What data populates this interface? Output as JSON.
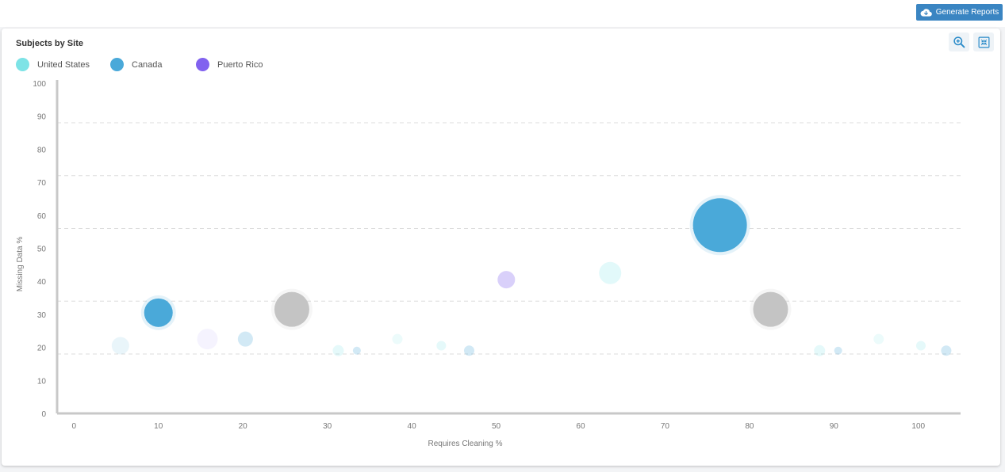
{
  "header": {
    "generate_label": "Generate Reports"
  },
  "colors": {
    "accent": "#3a85c2",
    "united_states": "#7de3e6",
    "canada": "#4aa9d9",
    "puerto_rico": "#8162ef",
    "gray": "#c4c4c4"
  },
  "chart_data": {
    "type": "scatter",
    "title": "Subjects by Site",
    "xlabel": "Requires Cleaning %",
    "ylabel": "Missing Data %",
    "xlim": [
      -2,
      105
    ],
    "ylim": [
      0,
      100
    ],
    "x_ticks": [
      0,
      10,
      20,
      30,
      40,
      50,
      60,
      70,
      80,
      90,
      100
    ],
    "y_ticks": [
      0,
      10,
      20,
      30,
      40,
      50,
      60,
      70,
      80,
      90,
      100
    ],
    "grid": "horizontal-dashed",
    "legend": "top-left",
    "series": [
      {
        "name": "United States",
        "color": "#7de3e6",
        "points": [
          {
            "x": 63.5,
            "y": 42.5,
            "size": 14,
            "opacity": 0.22
          },
          {
            "x": 31.3,
            "y": 19,
            "size": 7,
            "opacity": 0.2
          },
          {
            "x": 38.3,
            "y": 22.5,
            "size": 6.5,
            "opacity": 0.15
          },
          {
            "x": 43.5,
            "y": 20.5,
            "size": 6,
            "opacity": 0.2
          },
          {
            "x": 88.3,
            "y": 19,
            "size": 7,
            "opacity": 0.2
          },
          {
            "x": 95.3,
            "y": 22.5,
            "size": 6.5,
            "opacity": 0.15
          },
          {
            "x": 100.3,
            "y": 20.5,
            "size": 6,
            "opacity": 0.2
          }
        ]
      },
      {
        "name": "Canada",
        "color": "#4aa9d9",
        "points": [
          {
            "x": 10,
            "y": 30.5,
            "size": 18,
            "opacity": 1
          },
          {
            "x": 76.5,
            "y": 57,
            "size": 34,
            "opacity": 1
          },
          {
            "x": 5.5,
            "y": 20.5,
            "size": 11,
            "opacity": 0.12
          },
          {
            "x": 20.3,
            "y": 22.5,
            "size": 9.5,
            "opacity": 0.25
          },
          {
            "x": 33.5,
            "y": 19,
            "size": 5,
            "opacity": 0.25
          },
          {
            "x": 46.8,
            "y": 19,
            "size": 6.5,
            "opacity": 0.25
          },
          {
            "x": 90.5,
            "y": 19,
            "size": 5,
            "opacity": 0.25
          },
          {
            "x": 103.3,
            "y": 19,
            "size": 6.5,
            "opacity": 0.25
          }
        ]
      },
      {
        "name": "Puerto Rico",
        "color": "#8162ef",
        "points": [
          {
            "x": 51.2,
            "y": 40.5,
            "size": 11,
            "opacity": 0.3
          },
          {
            "x": 15.8,
            "y": 22.5,
            "size": 13,
            "opacity": 0.08
          }
        ]
      },
      {
        "name": "",
        "color": "#c4c4c4",
        "points": [
          {
            "x": 25.8,
            "y": 31.5,
            "size": 22,
            "opacity": 1
          },
          {
            "x": 82.5,
            "y": 31.5,
            "size": 22,
            "opacity": 1
          }
        ]
      }
    ]
  }
}
